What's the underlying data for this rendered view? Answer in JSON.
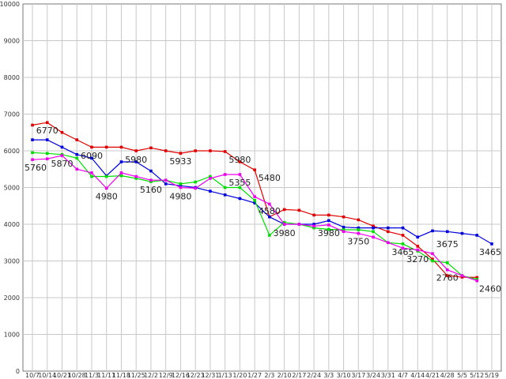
{
  "chart_data": {
    "type": "line",
    "title": "",
    "xlabel": "",
    "ylabel": "",
    "ylim": [
      0,
      10000
    ],
    "yticks": [
      0,
      1000,
      2000,
      3000,
      4000,
      5000,
      6000,
      7000,
      8000,
      9000,
      10000
    ],
    "grid": true,
    "categories": [
      "10/7",
      "10/14",
      "10/21",
      "10/28",
      "11/3",
      "11/11",
      "11/18",
      "11/25",
      "12/2",
      "12/9",
      "12/16",
      "12/23",
      "12/31",
      "1/13",
      "1/20",
      "1/27",
      "2/3",
      "2/10",
      "2/17",
      "2/24",
      "3/3",
      "3/10",
      "3/17",
      "3/24",
      "3/31",
      "4/7",
      "4/14",
      "4/21",
      "4/28",
      "5/5",
      "5/12",
      "5/19"
    ],
    "tick_labels": [
      "10/7",
      "10/14",
      "10/21",
      "10/28",
      "11/3",
      "11/11",
      "11/18",
      "11/25",
      "12/2",
      "12/9",
      "12/16",
      "12/23",
      "12/31",
      "1/13",
      "1/20",
      "1/27",
      "2/3",
      "2/10",
      "2/17",
      "2/24",
      "3/3",
      "3/10",
      "3/17",
      "3/24",
      "3/31",
      "4/7",
      "4/14",
      "4/21",
      "4/28",
      "5/5",
      "5/12",
      "5/19"
    ],
    "series": [
      {
        "color": "#e00000",
        "values": [
          6700,
          6770,
          6500,
          6300,
          6100,
          6100,
          6100,
          6000,
          6080,
          6000,
          5933,
          6000,
          6000,
          5980,
          5700,
          5480,
          4200,
          4400,
          4380,
          4250,
          4250,
          4200,
          4120,
          3950,
          3800,
          3700,
          3400,
          3050,
          2600,
          2560,
          2550,
          null
        ]
      },
      {
        "color": "#0000dd",
        "values": [
          6300,
          6300,
          6100,
          5900,
          5800,
          5320,
          5700,
          5700,
          5450,
          5100,
          5050,
          5000,
          4900,
          4800,
          4700,
          4580,
          4200,
          4000,
          4000,
          4000,
          4100,
          3920,
          3900,
          3900,
          3900,
          3900,
          3650,
          3820,
          3800,
          3750,
          3700,
          3465
        ]
      },
      {
        "color": "#00dd00",
        "values": [
          5950,
          5930,
          5900,
          5800,
          5300,
          5300,
          5320,
          5250,
          5160,
          5200,
          5100,
          5150,
          5300,
          5000,
          5000,
          4650,
          3700,
          4050,
          4000,
          3900,
          3860,
          3850,
          3850,
          3800,
          3500,
          3465,
          3270,
          3000,
          2950,
          2600,
          2500,
          null
        ]
      },
      {
        "color": "#ee00ee",
        "values": [
          5760,
          5780,
          5870,
          5500,
          5400,
          4980,
          5400,
          5300,
          5200,
          5200,
          5000,
          4980,
          5250,
          5355,
          5355,
          4750,
          4550,
          4000,
          4000,
          3950,
          3980,
          3800,
          3750,
          3650,
          3500,
          3350,
          3300,
          3200,
          2760,
          2600,
          2460,
          null
        ]
      }
    ],
    "data_labels": [
      {
        "text": "6770",
        "x": "10/14",
        "y": 6770
      },
      {
        "text": "6090",
        "x": "11/3",
        "y": 6090
      },
      {
        "text": "5760",
        "x": "10/7",
        "y": 5760
      },
      {
        "text": "5870",
        "x": "10/21",
        "y": 5870
      },
      {
        "text": "5980",
        "x": "11/25",
        "y": 5980
      },
      {
        "text": "4980",
        "x": "11/11",
        "y": 4980
      },
      {
        "text": "5160",
        "x": "12/2",
        "y": 5160
      },
      {
        "text": "5933",
        "x": "12/16",
        "y": 5933
      },
      {
        "text": "4980",
        "x": "12/16",
        "y": 4980
      },
      {
        "text": "5980",
        "x": "1/20",
        "y": 5980
      },
      {
        "text": "5355",
        "x": "1/20",
        "y": 5355
      },
      {
        "text": "5480",
        "x": "2/3",
        "y": 5480
      },
      {
        "text": "4580",
        "x": "2/3",
        "y": 4580
      },
      {
        "text": "3980",
        "x": "2/10",
        "y": 3980
      },
      {
        "text": "3980",
        "x": "3/3",
        "y": 3980
      },
      {
        "text": "3750",
        "x": "3/17",
        "y": 3750
      },
      {
        "text": "3465",
        "x": "4/7",
        "y": 3465
      },
      {
        "text": "3270",
        "x": "4/14",
        "y": 3270
      },
      {
        "text": "3675",
        "x": "4/28",
        "y": 3675
      },
      {
        "text": "2760",
        "x": "4/28",
        "y": 2760
      },
      {
        "text": "3465",
        "x": "5/19",
        "y": 3465
      },
      {
        "text": "2460",
        "x": "5/19",
        "y": 2460
      }
    ]
  }
}
